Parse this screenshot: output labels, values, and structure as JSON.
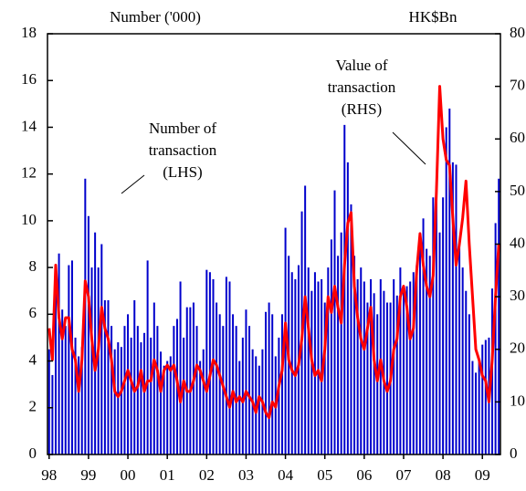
{
  "chart_data": {
    "type": "bar-line",
    "y_label": "Number ('000)",
    "y2_label": "HK$Bn",
    "annotations": [
      [
        "Number of",
        "transaction",
        "(LHS)"
      ],
      [
        "Value of",
        "transaction",
        "(RHS)"
      ]
    ],
    "categories": [
      "98",
      null,
      null,
      null,
      null,
      null,
      null,
      null,
      null,
      null,
      null,
      null,
      "99",
      null,
      null,
      null,
      null,
      null,
      null,
      null,
      null,
      null,
      null,
      null,
      "00",
      null,
      null,
      null,
      null,
      null,
      null,
      null,
      null,
      null,
      null,
      null,
      "01",
      null,
      null,
      null,
      null,
      null,
      null,
      null,
      null,
      null,
      null,
      null,
      "02",
      null,
      null,
      null,
      null,
      null,
      null,
      null,
      null,
      null,
      null,
      null,
      "03",
      null,
      null,
      null,
      null,
      null,
      null,
      null,
      null,
      null,
      null,
      null,
      "04",
      null,
      null,
      null,
      null,
      null,
      null,
      null,
      null,
      null,
      null,
      null,
      "05",
      null,
      null,
      null,
      null,
      null,
      null,
      null,
      null,
      null,
      null,
      null,
      "06",
      null,
      null,
      null,
      null,
      null,
      null,
      null,
      null,
      null,
      null,
      null,
      "07",
      null,
      null,
      null,
      null,
      null,
      null,
      null,
      null,
      null,
      null,
      null,
      "08",
      null,
      null,
      null,
      null,
      null,
      null,
      null,
      null,
      null,
      null,
      null,
      "09",
      null,
      null,
      null,
      null,
      null
    ],
    "series": [
      {
        "color": "#0000cc",
        "values": [
          4.5,
          3.4,
          8.0,
          8.6,
          6.2,
          5.5,
          8.1,
          8.3,
          5.0,
          4.2,
          4.6,
          11.8,
          10.2,
          8.0,
          9.5,
          8.0,
          9.0,
          6.6,
          6.6,
          5.5,
          4.5,
          4.8,
          4.6,
          5.5,
          6.0,
          5.0,
          6.6,
          5.5,
          4.8,
          5.2,
          8.3,
          5.0,
          6.5,
          5.5,
          4.4,
          3.8,
          4.0,
          4.2,
          5.5,
          5.8,
          7.4,
          5.0,
          6.3,
          6.3,
          6.5,
          5.5,
          4.0,
          4.5,
          7.9,
          7.8,
          7.5,
          6.5,
          6.0,
          5.5,
          7.6,
          7.4,
          6.0,
          5.5,
          4.0,
          5.0,
          6.2,
          5.5,
          4.5,
          4.2,
          3.8,
          4.5,
          6.1,
          6.5,
          6.0,
          4.2,
          5.0,
          6.0,
          9.7,
          8.5,
          7.8,
          7.5,
          8.1,
          10.4,
          11.5,
          8.0,
          7.0,
          7.8,
          7.4,
          7.5,
          6.5,
          8.0,
          9.2,
          11.3,
          8.5,
          9.5,
          14.1,
          12.5,
          10.7,
          8.5,
          7.5,
          8.0,
          7.4,
          6.5,
          7.5,
          6.9,
          6.0,
          7.5,
          7.0,
          6.5,
          6.5,
          7.5,
          6.8,
          8.0,
          7.0,
          7.2,
          7.4,
          7.8,
          8.1,
          9.5,
          10.1,
          8.8,
          8.5,
          11.0,
          11.5,
          9.5,
          11.0,
          14.0,
          14.8,
          12.5,
          12.4,
          9.0,
          8.0,
          7.0,
          6.0,
          4.0,
          3.5,
          4.0,
          4.7,
          4.9,
          5.0,
          7.1,
          9.9,
          11.8
        ]
      },
      {
        "color": "#ff0000",
        "axis": "y2",
        "values": [
          24,
          18,
          36,
          26,
          22,
          26,
          26,
          20,
          18,
          12,
          18,
          33,
          30,
          22,
          16,
          20,
          28,
          24,
          22,
          18,
          12,
          11,
          12,
          14,
          16,
          14,
          12,
          13,
          16,
          12,
          14,
          14,
          18,
          16,
          12,
          16,
          17,
          16,
          17,
          14,
          10,
          14,
          12,
          12,
          14,
          17,
          16,
          14,
          12,
          15,
          18,
          17,
          15,
          13,
          11,
          9,
          12,
          10,
          11,
          10,
          12,
          11,
          10,
          8,
          11,
          10,
          8,
          7,
          10,
          9,
          13,
          16,
          25,
          18,
          16,
          15,
          17,
          22,
          30,
          24,
          18,
          15,
          16,
          14,
          20,
          30,
          27,
          32,
          28,
          25,
          36,
          44,
          46,
          32,
          26,
          22,
          20,
          24,
          28,
          18,
          14,
          18,
          14,
          12,
          14,
          20,
          22,
          30,
          32,
          28,
          22,
          24,
          35,
          42,
          36,
          32,
          30,
          34,
          50,
          70,
          60,
          56,
          55,
          45,
          36,
          40,
          45,
          52,
          40,
          30,
          20,
          18,
          15,
          14,
          10,
          18,
          30,
          40
        ]
      }
    ],
    "ylim": [
      0,
      18
    ],
    "yticks": [
      0,
      2,
      4,
      6,
      8,
      10,
      12,
      14,
      16,
      18
    ],
    "y2lim": [
      0,
      80
    ],
    "y2ticks": [
      0,
      10,
      20,
      30,
      40,
      50,
      60,
      70,
      80
    ]
  }
}
